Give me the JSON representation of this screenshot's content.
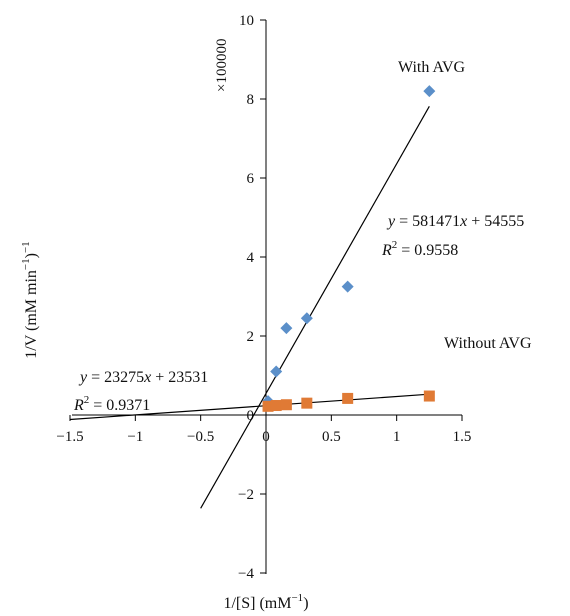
{
  "chart_data": {
    "type": "scatter",
    "xlabel": "1/[S] (mM",
    "xlabel_sup": "−1",
    "xlabel_end": ")",
    "ylabel": "1/V (mM min",
    "ylabel_sup1": "−1",
    "ylabel_mid": ")",
    "ylabel_sup2": "−1",
    "y_multiplier": "×100000",
    "xlim": [
      -1.5,
      1.5
    ],
    "ylim": [
      -4,
      10
    ],
    "x_ticks": [
      -1.5,
      -1,
      -0.5,
      0,
      0.5,
      1,
      1.5
    ],
    "x_tick_labels": [
      "−1.5",
      "−1",
      "−0.5",
      "0",
      "0.5",
      "1",
      "1.5"
    ],
    "y_ticks": [
      -4,
      -2,
      0,
      2,
      4,
      6,
      8,
      10
    ],
    "y_tick_labels": [
      "−4",
      "−2",
      "0",
      "2",
      "4",
      "6",
      "8",
      "10"
    ],
    "grid": false,
    "series": [
      {
        "name": "With AVG",
        "marker": "diamond",
        "color": "#5b8fc9",
        "x": [
          0.0156,
          0.078,
          0.156,
          0.3125,
          0.625,
          1.25
        ],
        "y": [
          0.35,
          1.1,
          2.2,
          2.45,
          3.25,
          8.2
        ],
        "trend": {
          "slope": 5.81471,
          "intercept": 0.54555,
          "x_range": [
            -0.5,
            1.25
          ]
        },
        "equation": {
          "y": "y",
          "rest": " = 581471",
          "x": "x",
          "tail": " + 54555"
        },
        "r2": {
          "r": "R",
          "sup": "2",
          "rest": " = 0.9558"
        }
      },
      {
        "name": "Without AVG",
        "marker": "square",
        "color": "#e07a35",
        "x": [
          0.0156,
          0.078,
          0.156,
          0.3125,
          0.625,
          1.25
        ],
        "y": [
          0.22,
          0.24,
          0.26,
          0.3,
          0.42,
          0.48
        ],
        "trend": {
          "slope": 0.23275,
          "intercept": 0.23531,
          "x_range": [
            -1.5,
            1.25
          ]
        },
        "equation": {
          "y": "y",
          "rest": " = 23275",
          "x": "x",
          "tail": " + 23531"
        },
        "r2": {
          "r": "R",
          "sup": "2",
          "rest": " = 0.9371"
        }
      }
    ]
  }
}
